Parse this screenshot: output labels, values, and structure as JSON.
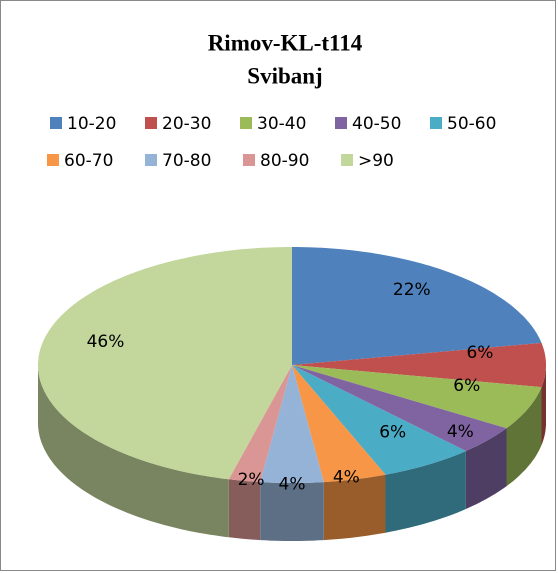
{
  "chart_data": {
    "type": "pie3d",
    "title": "Rimov-KL-t114",
    "subtitle": "Svibanj",
    "legend": "top",
    "series": [
      {
        "name": "10-20",
        "color": "#4f81bd"
      },
      {
        "name": "20-30",
        "color": "#c0504d"
      },
      {
        "name": "30-40",
        "color": "#9bbb59"
      },
      {
        "name": "40-50",
        "color": "#8064a2"
      },
      {
        "name": "50-60",
        "color": "#4bacc6"
      },
      {
        "name": "60-70",
        "color": "#f79646"
      },
      {
        "name": "70-80",
        "color": "#95b3d7"
      },
      {
        "name": "80-90",
        "color": "#d99694"
      },
      {
        ">90": null,
        "name": ">90",
        "color": "#c3d69b"
      }
    ],
    "values": [
      22,
      6,
      6,
      4,
      6,
      4,
      4,
      2,
      46
    ],
    "value_labels": [
      "22%",
      "6%",
      "6%",
      "4%",
      "6%",
      "4%",
      "4%",
      "2%",
      "46%"
    ]
  }
}
